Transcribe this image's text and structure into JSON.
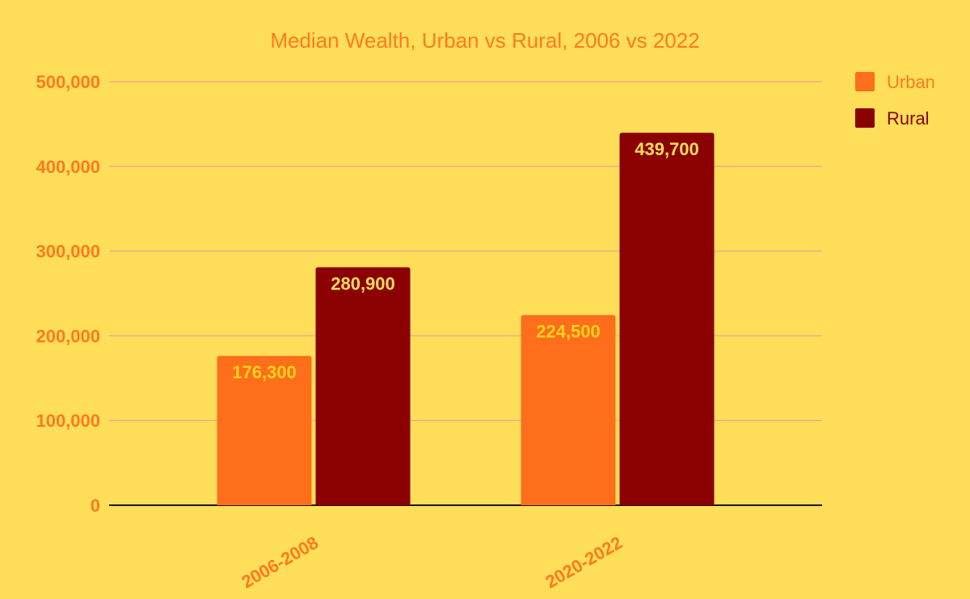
{
  "colors": {
    "background": "#FFDE59",
    "urban": "#FF6E1A",
    "rural": "#8B0000",
    "grid": "#F4A98C",
    "axis": "#1A1A1A",
    "text_orange": "#FF7A1F",
    "urban_label": "#FFD21F",
    "rural_label": "#FFDE59"
  },
  "chart_data": {
    "type": "bar",
    "title": "Median Wealth, Urban vs Rural, 2006 vs 2022",
    "categories": [
      "2006-2008",
      "2020-2022"
    ],
    "series": [
      {
        "name": "Urban",
        "values": [
          176300,
          224500
        ],
        "labels": [
          "176,300",
          "224,500"
        ]
      },
      {
        "name": "Rural",
        "values": [
          280900,
          439700
        ],
        "labels": [
          "280,900",
          "439,700"
        ]
      }
    ],
    "ylim": [
      0,
      500000
    ],
    "yticks": [
      0,
      100000,
      200000,
      300000,
      400000,
      500000
    ],
    "ytick_labels": [
      "0",
      "100,000",
      "200,000",
      "300,000",
      "400,000",
      "500,000"
    ],
    "xlabel": "",
    "ylabel": "",
    "grid": true,
    "legend_position": "top-right"
  }
}
